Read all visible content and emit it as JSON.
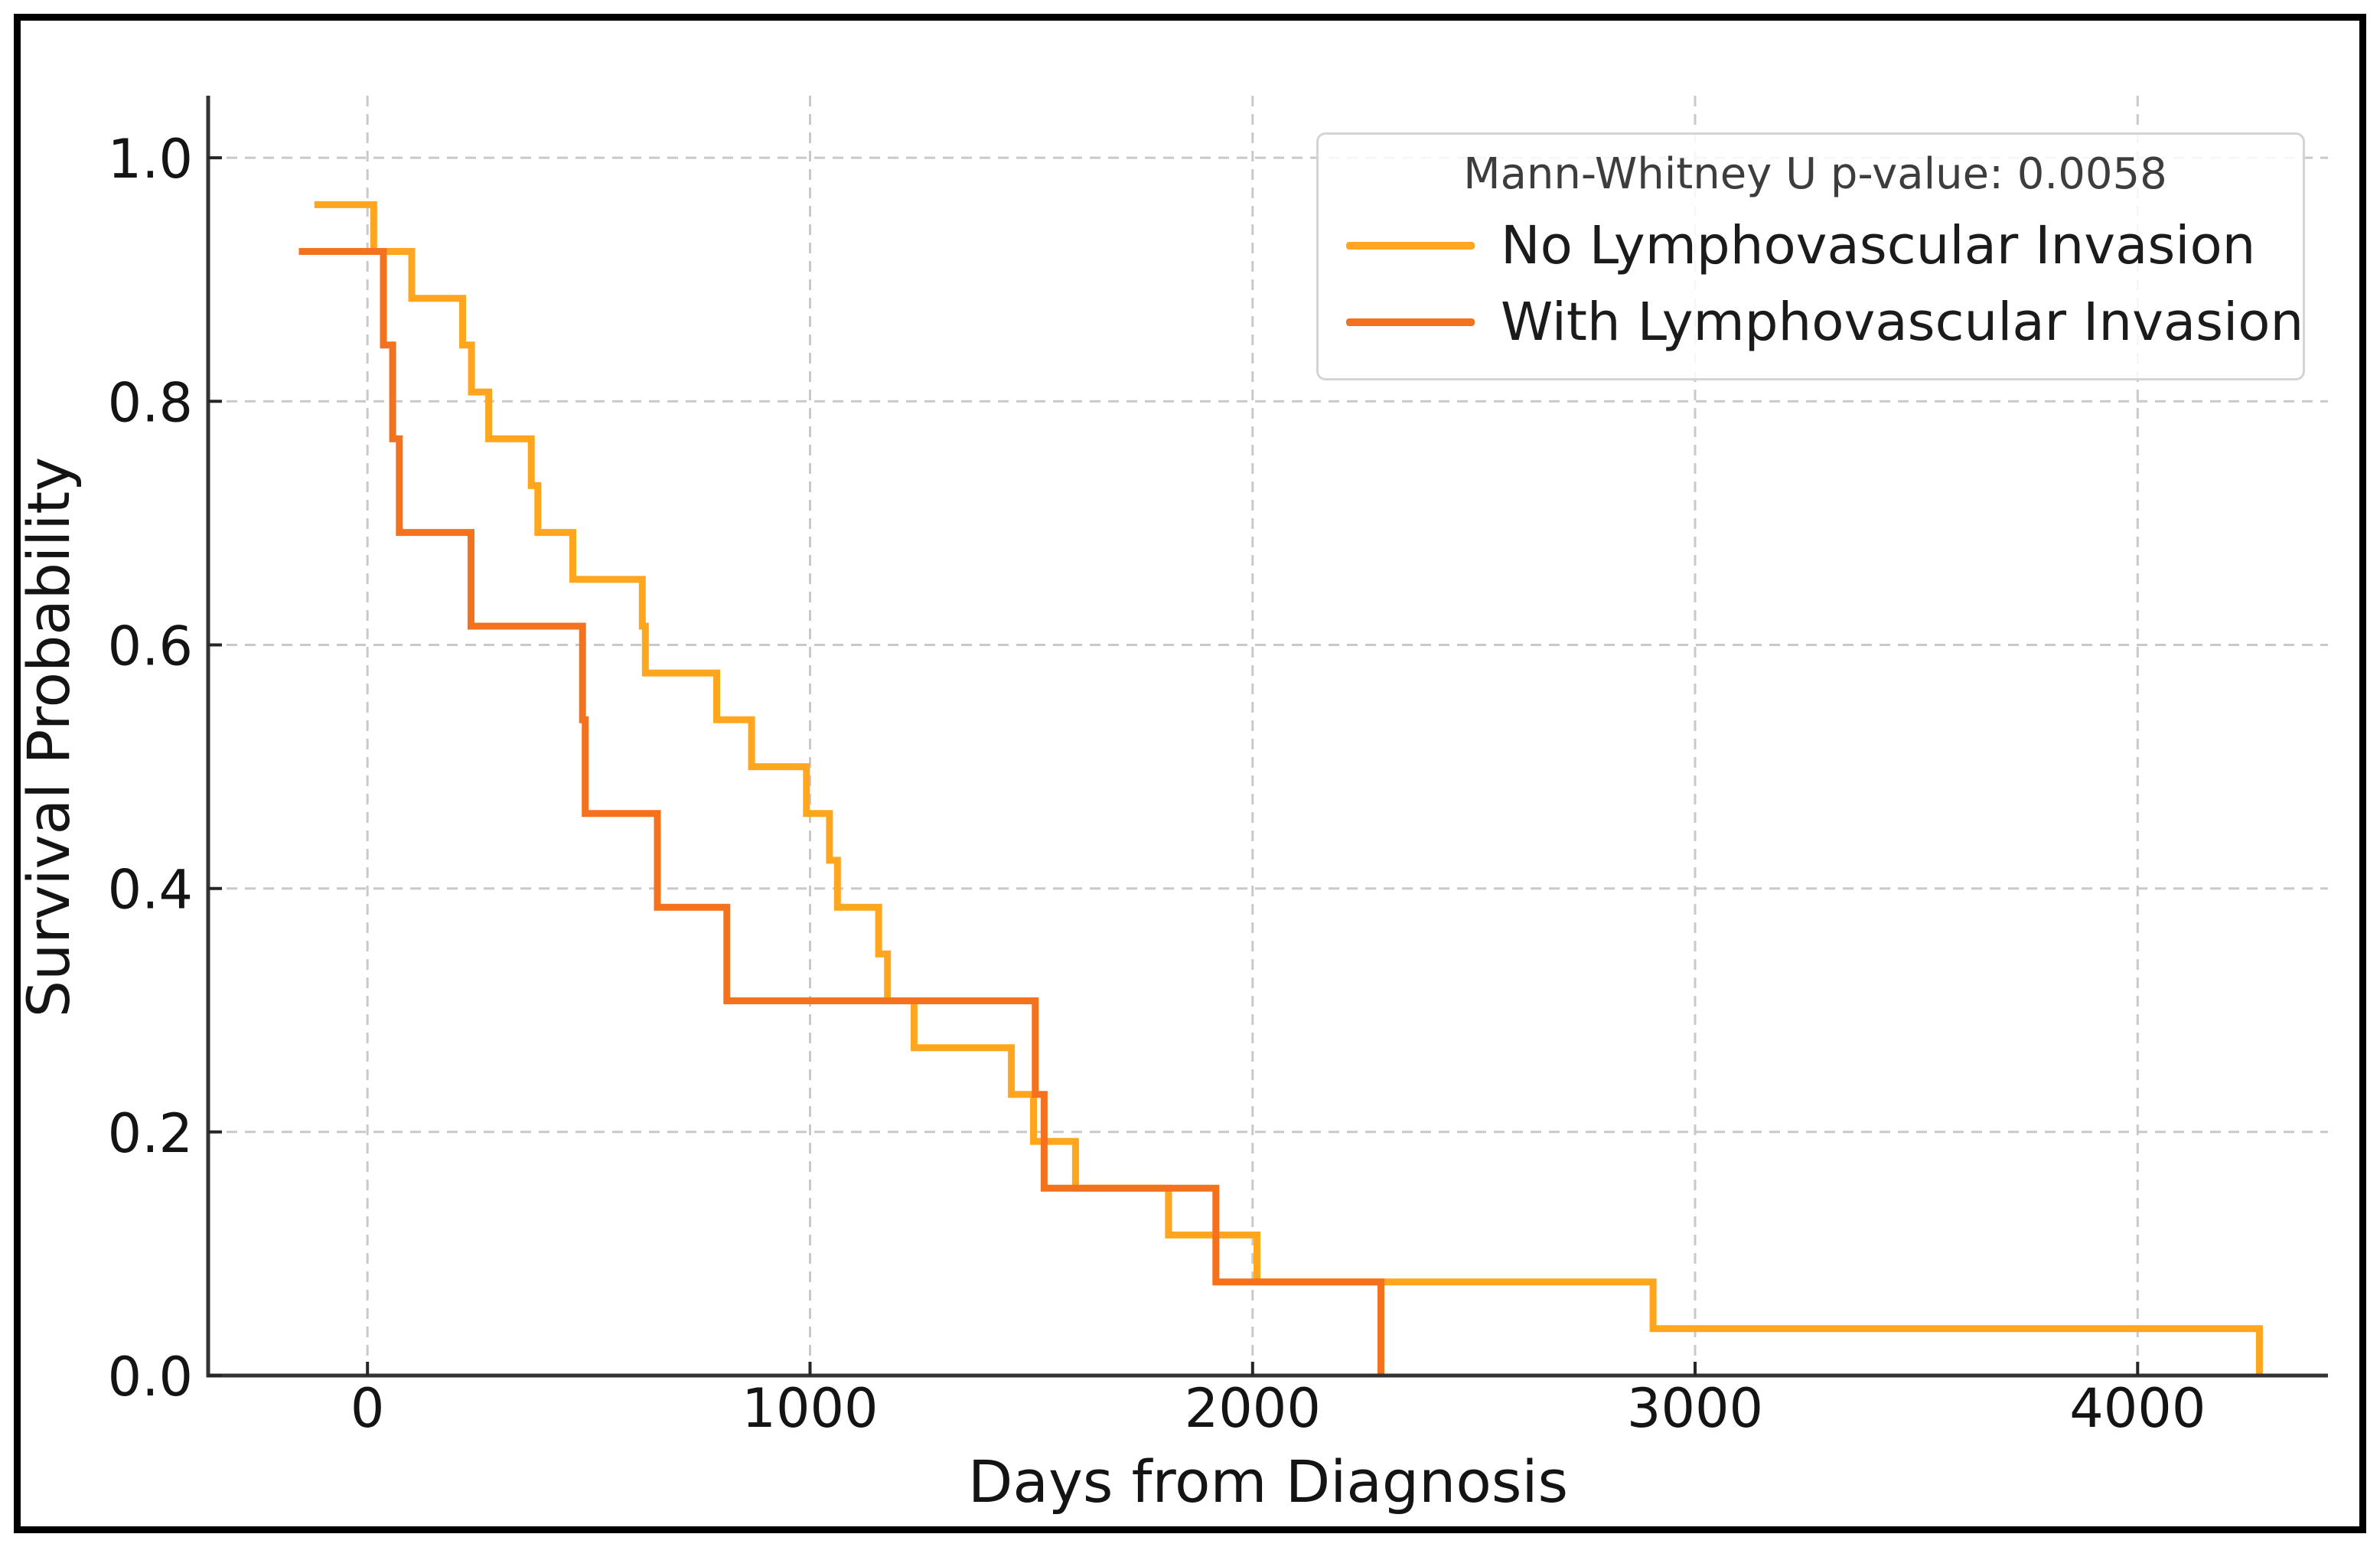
{
  "chart": {
    "xlabel": "Days from Diagnosis",
    "ylabel": "Survival Probability"
  },
  "legend": {
    "annotation": "Mann-Whitney U p-value: 0.0058",
    "items": [
      {
        "label": "No Lymphovascular Invasion",
        "color": "#FFA51E"
      },
      {
        "label": "With Lymphovascular Invasion",
        "color": "#F4711E"
      }
    ]
  },
  "chart_data": {
    "type": "line",
    "subtype": "kaplan-meier-step",
    "title": "",
    "xlabel": "Days from Diagnosis",
    "ylabel": "Survival Probability",
    "annotation": "Mann-Whitney U p-value: 0.0058",
    "xlim": [
      -360,
      4430
    ],
    "ylim": [
      0,
      1.051
    ],
    "grid": true,
    "grid_style": "dashed",
    "legend_position": "upper right",
    "x_ticks": {
      "values": [
        0,
        1000,
        2000,
        3000,
        4000
      ],
      "labels": [
        "0",
        "1000",
        "2000",
        "3000",
        "4000"
      ]
    },
    "y_ticks": {
      "values": [
        0.0,
        0.2,
        0.4,
        0.6,
        0.8,
        1.0
      ],
      "labels": [
        "0.0",
        "0.2",
        "0.4",
        "0.6",
        "0.8",
        "1.0"
      ]
    },
    "series": [
      {
        "name": "No Lymphovascular Invasion",
        "color": "#FFA51E",
        "step": "post",
        "x": [
          -120,
          14,
          100,
          215,
          235,
          274,
          370,
          385,
          464,
          621,
          628,
          789,
          868,
          992,
          1044,
          1062,
          1155,
          1175,
          1235,
          1455,
          1505,
          1600,
          1810,
          2010,
          2905,
          4275
        ],
        "y": [
          0.9615,
          0.9231,
          0.8846,
          0.8462,
          0.8077,
          0.7692,
          0.7308,
          0.6923,
          0.6538,
          0.6154,
          0.5769,
          0.5385,
          0.5,
          0.4615,
          0.4231,
          0.3846,
          0.3462,
          0.3077,
          0.2692,
          0.2308,
          0.1923,
          0.1538,
          0.1154,
          0.0769,
          0.0385,
          0.0
        ]
      },
      {
        "name": "With Lymphovascular Invasion",
        "color": "#F4711E",
        "step": "post",
        "x": [
          -155,
          36,
          57,
          72,
          234,
          486,
          492,
          655,
          812,
          1509,
          1529,
          1917,
          2290
        ],
        "y": [
          0.9231,
          0.8462,
          0.7692,
          0.6923,
          0.6154,
          0.5385,
          0.4615,
          0.3846,
          0.3077,
          0.2308,
          0.1538,
          0.0769,
          0.0
        ]
      }
    ]
  }
}
